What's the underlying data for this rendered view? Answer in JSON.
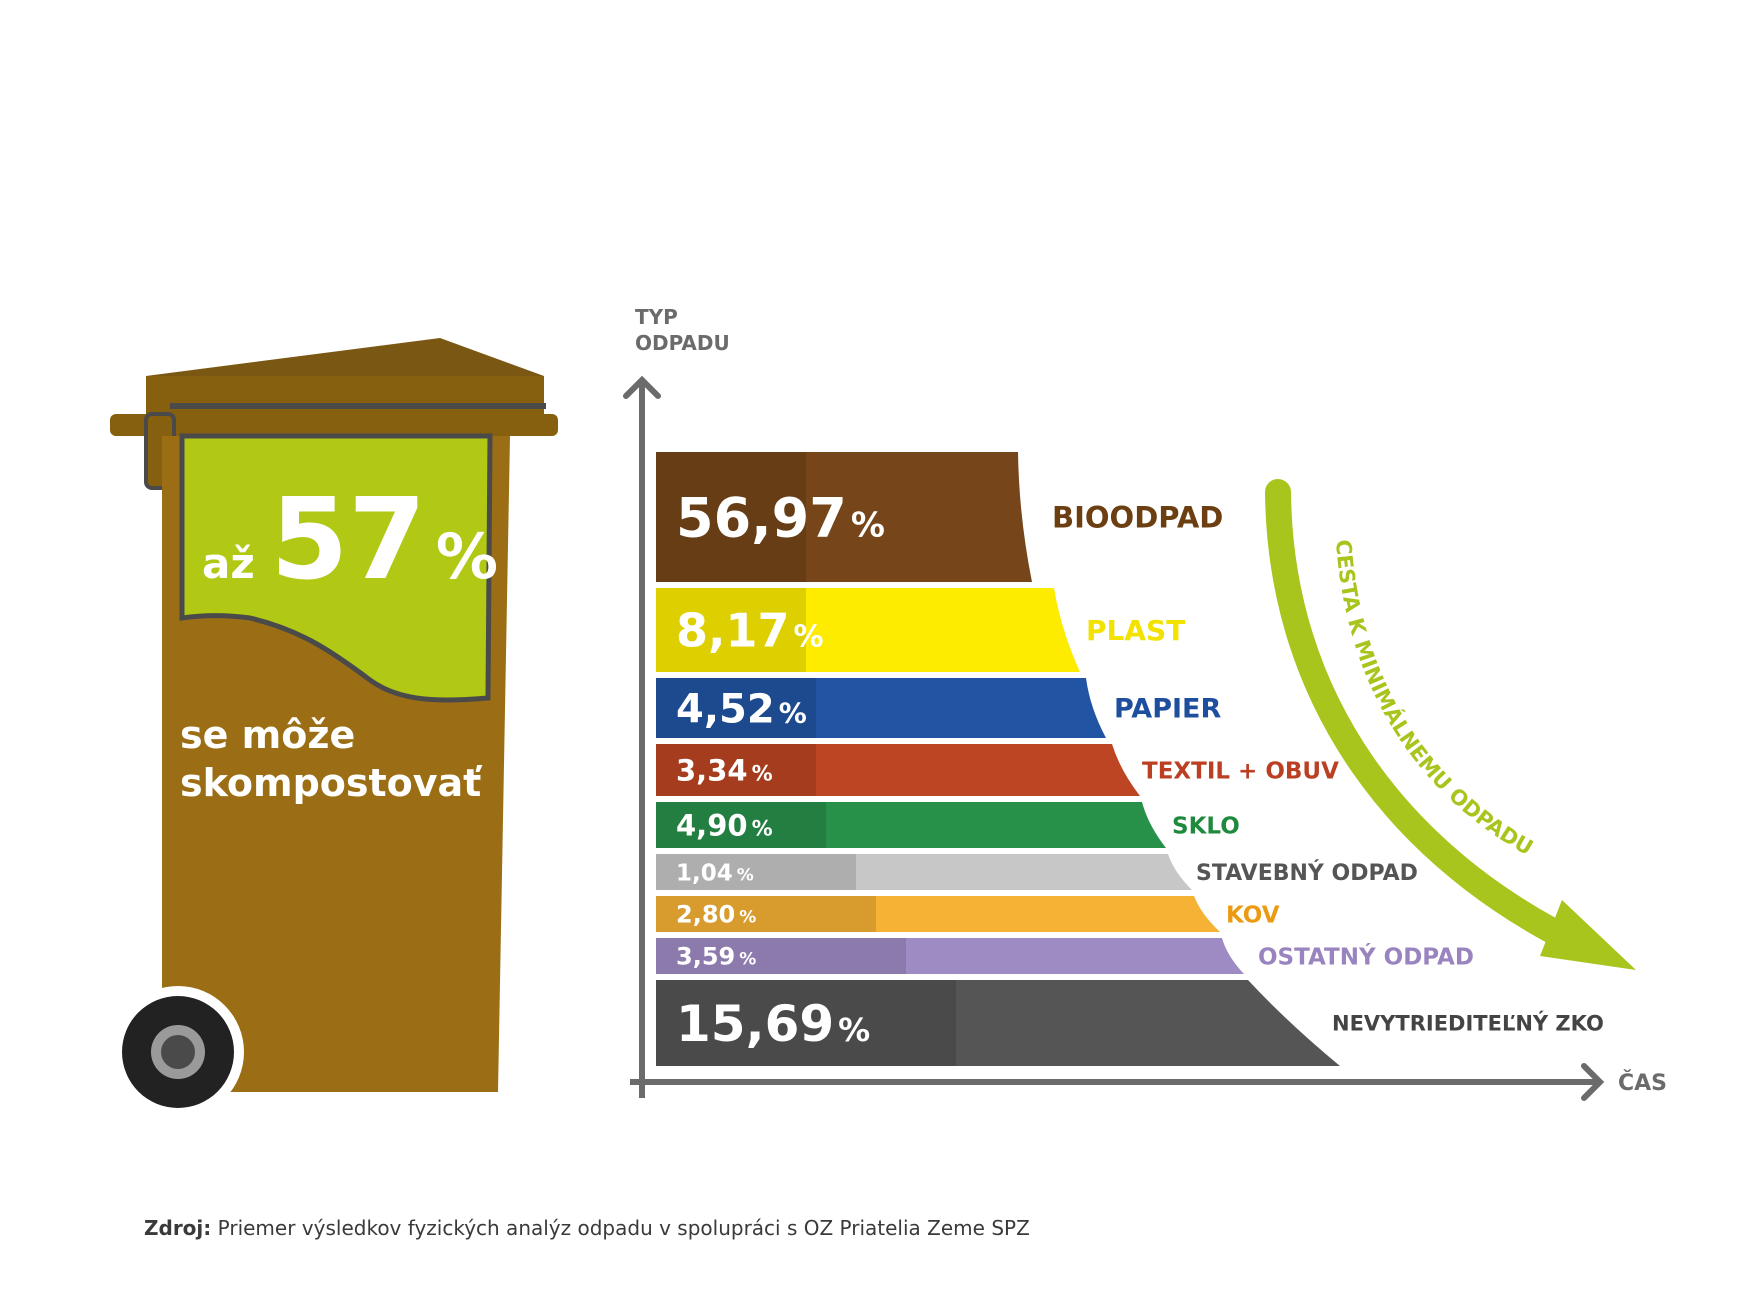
{
  "bin": {
    "prefix": "až",
    "big_number": "57",
    "percent": "%",
    "caption_line1": "se môže",
    "caption_line2": "skompostovať",
    "colors": {
      "body": "#9b6e15",
      "lid": "#87600f",
      "lid_top": "#7a5712",
      "label": "#b1c815",
      "outline": "#4a4a4a",
      "wheel": "#222222"
    }
  },
  "axes": {
    "y_label_line1": "TYP",
    "y_label_line2": "ODPADU",
    "x_label": "ČAS",
    "color": "#6b6b6b"
  },
  "arrow_label": "CESTA K MINIMÁLNEMU ODPADU",
  "arrow_color": "#a8c51d",
  "chart_data": {
    "type": "bar",
    "categories": [
      "BIOODPAD",
      "PLAST",
      "PAPIER",
      "TEXTIL + OBUV",
      "SKLO",
      "STAVEBNÝ ODPAD",
      "KOV",
      "OSTATNÝ ODPAD",
      "NEVYTRIEDITEĽNÝ ZKO"
    ],
    "values": [
      56.97,
      8.17,
      4.52,
      3.34,
      4.9,
      1.04,
      2.8,
      3.59,
      15.69
    ],
    "value_labels": [
      "56,97",
      "8,17",
      "4,52",
      "3,34",
      "4,90",
      "1,04",
      "2,80",
      "3,59",
      "15,69"
    ],
    "unit": "%",
    "colors": [
      "#76461a",
      "#fdec00",
      "#2155a3",
      "#bd4523",
      "#27914a",
      "#c7c7c7",
      "#f6b235",
      "#9f8bc3",
      "#555555"
    ],
    "label_colors": [
      "#6b3f11",
      "#f3e200",
      "#1e4f9e",
      "#bb3f22",
      "#1f8a3e",
      "#555555",
      "#ec9a11",
      "#9a84c0",
      "#444444"
    ]
  },
  "source": {
    "label": "Zdroj:",
    "text": "Priemer výsledkov fyzických analýz odpadu v spolupráci s OZ Priatelia Zeme SPZ"
  }
}
